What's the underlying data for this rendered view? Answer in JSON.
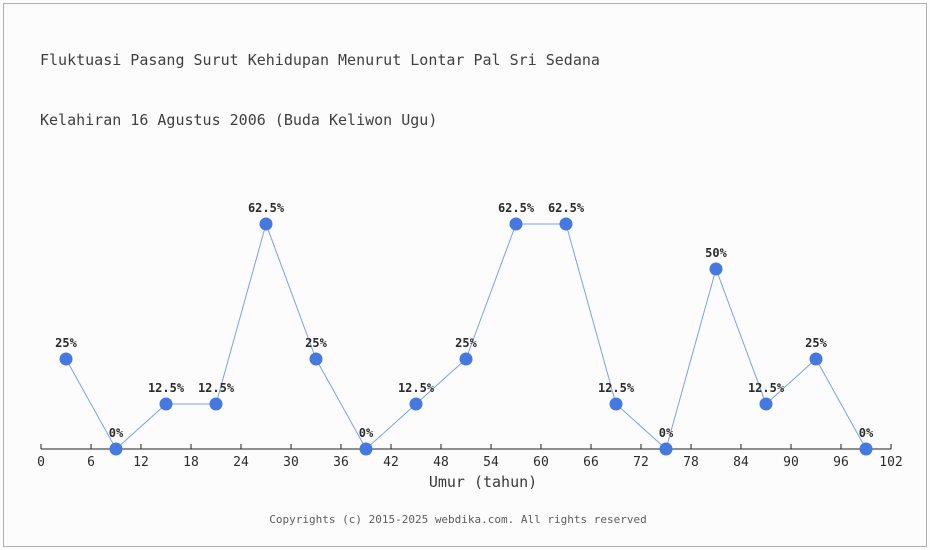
{
  "page": {
    "background": "#fcfcfc",
    "frame_border_color": "#b0b0b0"
  },
  "chart_data": {
    "type": "line",
    "title": "Fluktuasi Pasang Surut Kehidupan Menurut Lontar Pal Sri Sedana",
    "subtitle": "Kelahiran 16 Agustus 2006 (Buda Keliwon Ugu)",
    "xlabel": "Umur (tahun)",
    "ylabel": "",
    "x": [
      3,
      9,
      15,
      21,
      27,
      33,
      39,
      45,
      51,
      57,
      63,
      69,
      75,
      81,
      87,
      93,
      99
    ],
    "values": [
      25,
      0,
      12.5,
      12.5,
      62.5,
      25,
      0,
      12.5,
      25,
      62.5,
      62.5,
      12.5,
      0,
      50,
      12.5,
      25,
      0
    ],
    "point_labels": [
      "25%",
      "0%",
      "12.5%",
      "12.5%",
      "62.5%",
      "25%",
      "0%",
      "12.5%",
      "25%",
      "62.5%",
      "62.5%",
      "12.5%",
      "0%",
      "50%",
      "12.5%",
      "25%",
      "0%"
    ],
    "x_ticks": [
      0,
      6,
      12,
      18,
      24,
      30,
      36,
      42,
      48,
      54,
      60,
      66,
      72,
      78,
      84,
      90,
      96,
      102
    ],
    "xlim": [
      0,
      102
    ],
    "ylim": [
      0,
      100
    ],
    "grid": false,
    "legend": "none",
    "line_color": "#7ba1e8",
    "marker_color": "#4579e0",
    "axis_color": "#1f1f1f",
    "label_color": "#2b2b2b"
  },
  "footer": {
    "copyright": "Copyrights (c) 2015-2025 webdika.com. All rights reserved"
  }
}
